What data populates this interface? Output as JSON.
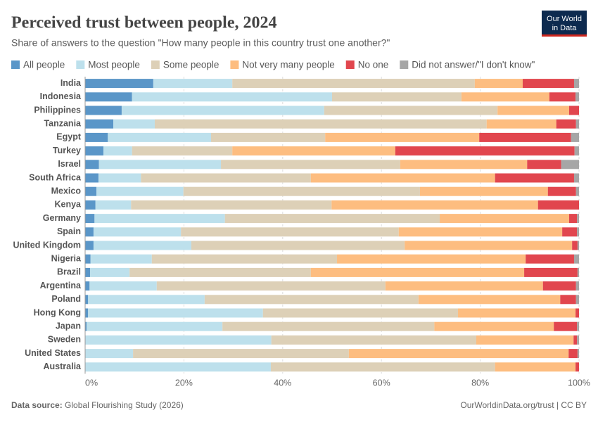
{
  "chart_data": {
    "type": "stacked-bar-horizontal",
    "title": "Perceived trust between people, 2024",
    "subtitle": "Share of answers to the question \"How many people in this country trust one another?\"",
    "logo": [
      "Our World",
      "in Data"
    ],
    "source_label": "Data source:",
    "source": "Global Flourishing Study (2026)",
    "credit": "OurWorldinData.org/trust | CC BY",
    "xlim": [
      0,
      100
    ],
    "xticks": [
      {
        "value": 0,
        "label": "0%"
      },
      {
        "value": 20,
        "label": "20%"
      },
      {
        "value": 40,
        "label": "40%"
      },
      {
        "value": 60,
        "label": "60%"
      },
      {
        "value": 80,
        "label": "80%"
      },
      {
        "value": 100,
        "label": "100%"
      }
    ],
    "grid": true,
    "categories": [
      "India",
      "Indonesia",
      "Philippines",
      "Tanzania",
      "Egypt",
      "Turkey",
      "Israel",
      "South Africa",
      "Mexico",
      "Kenya",
      "Germany",
      "Spain",
      "United Kingdom",
      "Nigeria",
      "Brazil",
      "Argentina",
      "Poland",
      "Hong Kong",
      "Japan",
      "Sweden",
      "United States",
      "Australia"
    ],
    "series": [
      {
        "name": "All people",
        "color": "#5a96c8",
        "values": [
          13.8,
          9.5,
          7.4,
          5.7,
          4.6,
          3.7,
          2.8,
          2.7,
          2.3,
          2.1,
          1.9,
          1.7,
          1.7,
          1.1,
          1.0,
          0.9,
          0.6,
          0.6,
          0.3,
          0.1,
          0,
          0
        ]
      },
      {
        "name": "Most people",
        "color": "#bde0ec",
        "values": [
          16.0,
          40.5,
          41.0,
          8.4,
          20.9,
          5.8,
          24.7,
          8.6,
          17.6,
          7.2,
          26.4,
          17.7,
          19.8,
          12.4,
          8.0,
          13.6,
          23.6,
          35.4,
          27.5,
          37.6,
          9.7,
          37.6
        ]
      },
      {
        "name": "Some people",
        "color": "#ddd0b7",
        "values": [
          49.1,
          26.2,
          35.1,
          67.2,
          23.1,
          20.3,
          36.3,
          34.4,
          47.9,
          40.6,
          43.5,
          44.1,
          43.2,
          37.5,
          36.7,
          46.3,
          43.3,
          39.5,
          42.9,
          41.5,
          43.7,
          45.4
        ]
      },
      {
        "name": "Not very many people",
        "color": "#fdbd80",
        "values": [
          9.7,
          17.8,
          14.5,
          14.1,
          31.2,
          33.0,
          25.7,
          37.3,
          25.9,
          41.8,
          26.2,
          33.1,
          33.9,
          38.2,
          43.2,
          31.9,
          28.7,
          23.8,
          24.2,
          19.7,
          44.5,
          16.3
        ]
      },
      {
        "name": "No one",
        "color": "#e1464e",
        "values": [
          10.4,
          5.3,
          2.0,
          4.0,
          18.6,
          36.3,
          6.9,
          16.0,
          5.7,
          8.3,
          1.6,
          3.0,
          1.1,
          9.8,
          10.8,
          6.7,
          3.2,
          0.7,
          4.7,
          0.7,
          1.8,
          0.7
        ]
      },
      {
        "name": "Did not answer/\"I don't know\"",
        "color": "#a6a6a6",
        "values": [
          1.0,
          0.7,
          0,
          0.6,
          1.6,
          0.9,
          3.6,
          1.0,
          0.6,
          0,
          0.4,
          0.4,
          0.3,
          1.0,
          0.3,
          0.6,
          0.6,
          0,
          0.4,
          0.4,
          0.3,
          0
        ]
      }
    ]
  }
}
